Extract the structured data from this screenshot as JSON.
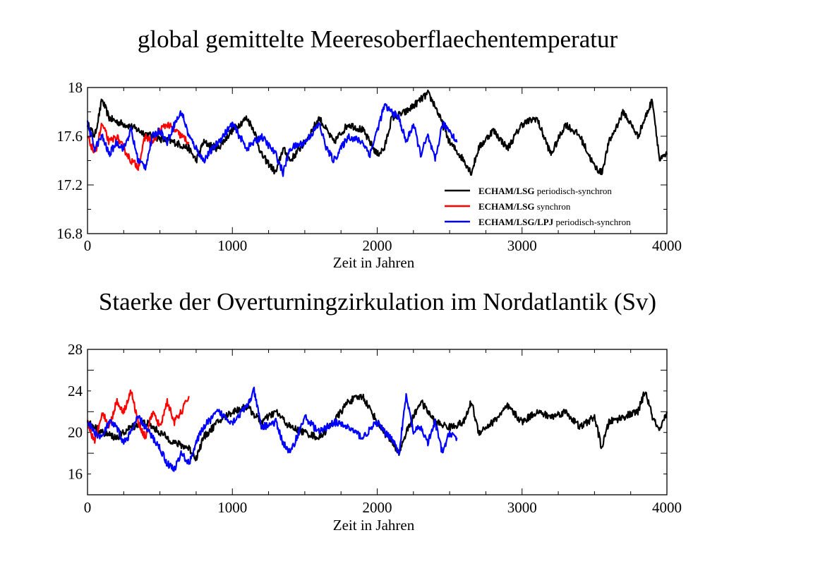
{
  "colors": {
    "black_series": "#000000",
    "red_series": "#ff0000",
    "blue_series": "#0000ff"
  },
  "chart_data": [
    {
      "type": "line",
      "title": "global gemittelte Meeresoberflaechentemperatur",
      "xlabel": "Zeit  in Jahren",
      "ylabel": "",
      "xlim": [
        0,
        4000
      ],
      "ylim": [
        16.8,
        18.0
      ],
      "xticks": [
        "0",
        "1000",
        "2000",
        "3000",
        "4000"
      ],
      "yticks": [
        "16.8",
        "17.2",
        "17.6",
        "18"
      ],
      "grid": false,
      "legend_position": "bottom-right",
      "legend": [
        {
          "bold": "ECHAM/LSG",
          "text": "periodisch-synchron",
          "color": "#000000"
        },
        {
          "bold": "ECHAM/LSG",
          "text": "synchron",
          "color": "#ff0000"
        },
        {
          "bold": "ECHAM/LSG/LPJ",
          "text": "periodisch-synchron",
          "color": "#0000ff"
        }
      ],
      "series": [
        {
          "color": "#000000",
          "x": [
            0,
            50,
            100,
            150,
            200,
            300,
            400,
            500,
            600,
            700,
            750,
            800,
            900,
            1000,
            1100,
            1150,
            1200,
            1300,
            1350,
            1400,
            1500,
            1600,
            1700,
            1800,
            1900,
            2000,
            2050,
            2100,
            2200,
            2300,
            2350,
            2400,
            2500,
            2600,
            2650,
            2700,
            2800,
            2900,
            3000,
            3100,
            3200,
            3300,
            3400,
            3500,
            3550,
            3600,
            3700,
            3800,
            3900,
            3950,
            4000
          ],
          "y": [
            17.7,
            17.6,
            17.9,
            17.75,
            17.72,
            17.68,
            17.62,
            17.58,
            17.55,
            17.5,
            17.4,
            17.55,
            17.5,
            17.65,
            17.75,
            17.65,
            17.45,
            17.3,
            17.5,
            17.4,
            17.55,
            17.75,
            17.55,
            17.7,
            17.65,
            17.45,
            17.5,
            17.75,
            17.8,
            17.9,
            17.95,
            17.85,
            17.55,
            17.4,
            17.3,
            17.5,
            17.65,
            17.5,
            17.7,
            17.75,
            17.45,
            17.7,
            17.6,
            17.35,
            17.3,
            17.55,
            17.8,
            17.6,
            17.9,
            17.4,
            17.45
          ]
        },
        {
          "color": "#ff0000",
          "x": [
            0,
            50,
            100,
            150,
            200,
            250,
            300,
            350,
            400,
            450,
            500,
            550,
            600,
            650,
            700
          ],
          "y": [
            17.6,
            17.45,
            17.7,
            17.55,
            17.6,
            17.5,
            17.4,
            17.35,
            17.6,
            17.55,
            17.65,
            17.7,
            17.65,
            17.6,
            17.55
          ]
        },
        {
          "color": "#0000ff",
          "x": [
            0,
            50,
            100,
            150,
            200,
            250,
            300,
            350,
            400,
            450,
            500,
            550,
            600,
            650,
            700,
            750,
            800,
            900,
            1000,
            1100,
            1200,
            1300,
            1350,
            1400,
            1500,
            1600,
            1650,
            1700,
            1800,
            1900,
            1950,
            2000,
            2050,
            2100,
            2150,
            2200,
            2250,
            2300,
            2350,
            2400,
            2450,
            2500,
            2550
          ],
          "y": [
            17.7,
            17.5,
            17.6,
            17.45,
            17.55,
            17.5,
            17.65,
            17.4,
            17.35,
            17.6,
            17.65,
            17.55,
            17.7,
            17.8,
            17.6,
            17.5,
            17.4,
            17.55,
            17.7,
            17.5,
            17.6,
            17.45,
            17.3,
            17.5,
            17.55,
            17.7,
            17.5,
            17.4,
            17.6,
            17.55,
            17.45,
            17.65,
            17.85,
            17.8,
            17.75,
            17.55,
            17.7,
            17.45,
            17.6,
            17.4,
            17.7,
            17.65,
            17.55
          ]
        }
      ]
    },
    {
      "type": "line",
      "title": "Staerke der Overturningzirkulation im Nordatlantik (Sv)",
      "xlabel": "Zeit in Jahren",
      "ylabel": "",
      "xlim": [
        0,
        4000
      ],
      "ylim": [
        14,
        28
      ],
      "xticks": [
        "0",
        "1000",
        "2000",
        "3000",
        "4000"
      ],
      "yticks": [
        "16",
        "20",
        "24",
        "28"
      ],
      "grid": false,
      "series": [
        {
          "color": "#000000",
          "x": [
            0,
            100,
            200,
            300,
            400,
            500,
            600,
            700,
            750,
            800,
            900,
            1000,
            1100,
            1200,
            1300,
            1400,
            1500,
            1600,
            1700,
            1800,
            1900,
            2000,
            2100,
            2150,
            2200,
            2300,
            2400,
            2500,
            2600,
            2650,
            2700,
            2800,
            2900,
            3000,
            3100,
            3200,
            3300,
            3400,
            3500,
            3550,
            3600,
            3700,
            3800,
            3850,
            3900,
            3950,
            4000
          ],
          "y": [
            21,
            20,
            19.5,
            20.5,
            21,
            20,
            19,
            18.5,
            17.5,
            19.5,
            21,
            22,
            22.5,
            21,
            22,
            20.5,
            20,
            19.5,
            21,
            23,
            23.5,
            21,
            19,
            18,
            20,
            23,
            21,
            20.5,
            21,
            23,
            20,
            21,
            22.5,
            21,
            22,
            21.5,
            22,
            20.5,
            21.5,
            18.5,
            21,
            21.5,
            22,
            24,
            21.5,
            20,
            22
          ]
        },
        {
          "color": "#ff0000",
          "x": [
            0,
            50,
            100,
            150,
            200,
            250,
            300,
            350,
            400,
            450,
            500,
            550,
            600,
            650,
            700
          ],
          "y": [
            21,
            19,
            22,
            20.5,
            23,
            22,
            24,
            21,
            19.5,
            22,
            20.5,
            23,
            21,
            22,
            23.5
          ]
        },
        {
          "color": "#0000ff",
          "x": [
            0,
            50,
            100,
            150,
            200,
            250,
            300,
            350,
            400,
            450,
            500,
            550,
            600,
            650,
            700,
            750,
            800,
            900,
            1000,
            1100,
            1150,
            1200,
            1300,
            1350,
            1400,
            1500,
            1600,
            1700,
            1800,
            1900,
            2000,
            2050,
            2100,
            2150,
            2200,
            2250,
            2300,
            2350,
            2400,
            2450,
            2500,
            2550
          ],
          "y": [
            21,
            20,
            19.5,
            21,
            20.5,
            19,
            20,
            21.5,
            20.5,
            19.5,
            18.5,
            17,
            16.5,
            18,
            17,
            19,
            20.5,
            22,
            21,
            22.5,
            24,
            20.5,
            21,
            19,
            18,
            21.5,
            20,
            21,
            20.5,
            19.5,
            21,
            20,
            19.5,
            18,
            23.5,
            20,
            20.5,
            19,
            21,
            18,
            20,
            19.5
          ]
        }
      ]
    }
  ]
}
